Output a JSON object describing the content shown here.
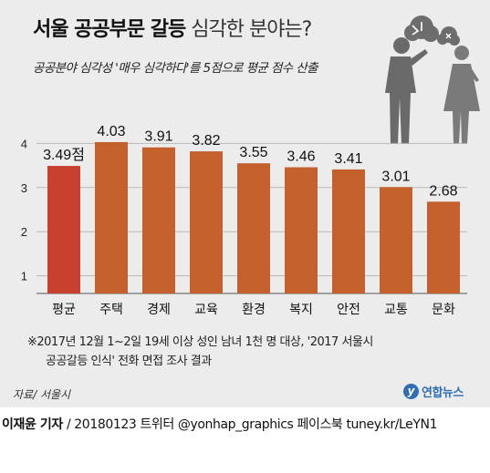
{
  "header": {
    "title_bold": "서울 공공부문 갈등",
    "title_light": "심각한 분야는?",
    "subtitle": "공공분야 심각성 '매우 심각하다'를 5점으로 평균 점수 산출"
  },
  "chart_data": {
    "type": "bar",
    "categories": [
      "평균",
      "주택",
      "경제",
      "교육",
      "환경",
      "복지",
      "안전",
      "교통",
      "문화"
    ],
    "values": [
      3.49,
      4.03,
      3.91,
      3.82,
      3.55,
      3.46,
      3.41,
      3.01,
      2.68
    ],
    "value_labels": [
      "3.49점",
      "4.03",
      "3.91",
      "3.82",
      "3.55",
      "3.46",
      "3.41",
      "3.01",
      "2.68"
    ],
    "y_ticks": [
      "1",
      "2",
      "3",
      "4"
    ],
    "ylim": [
      0.6,
      4.4
    ],
    "grid": true,
    "colors": {
      "average": "#c8402f",
      "bar": "#c3602c",
      "grid": "#b9b9b9"
    }
  },
  "footnote": {
    "line1": "※2017년 12월 1~2일 19세 이상 성인 남녀 1천 명 대상, '2017 서울시",
    "line2": "공공갈등 인식' 전화 면접 조사 결과"
  },
  "source": "자료/ 서울시",
  "logo": {
    "mark": "y",
    "text": "연합뉴스",
    "color": "#2f6eb5"
  },
  "credit": {
    "author": "이재윤 기자",
    "rest": "/ 20180123   트위터 @yonhap_graphics  페이스북 tuney.kr/LeYN1"
  }
}
